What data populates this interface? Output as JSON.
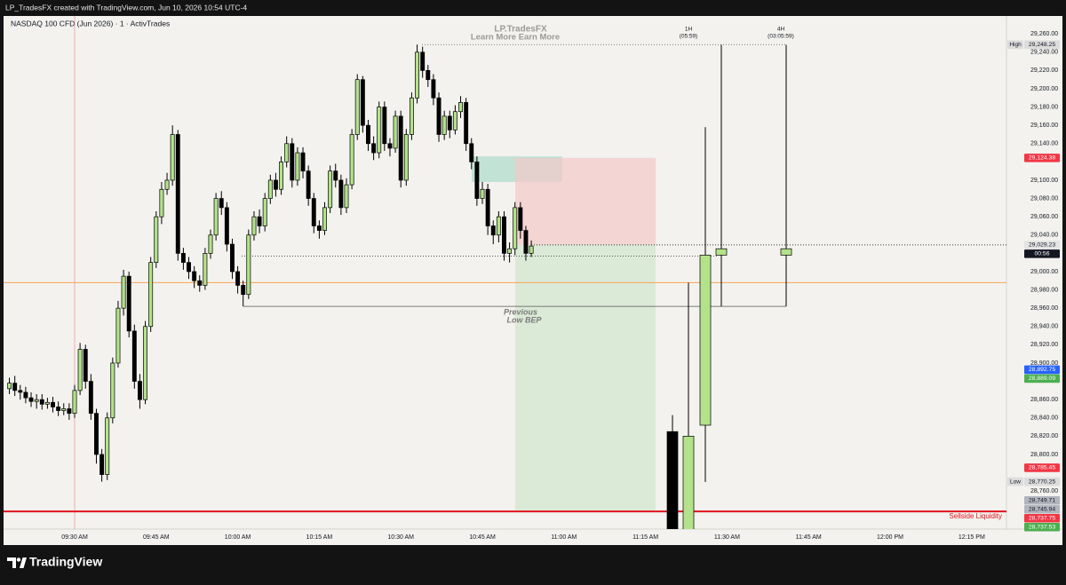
{
  "header": "LP_TradesFX created with TradingView.com, Jun 10, 2026 10:54 UTC-4",
  "footer": {
    "logo": "TradingView"
  },
  "chart_data": {
    "type": "candlestick",
    "title": "NASDAQ 100 CFD (Jun 2026) · 1 · ActivTrades",
    "watermark": [
      "LP.TradesFX",
      "Learn More Earn More"
    ],
    "categories": [
      "09:18",
      "09:19",
      "09:20",
      "09:21",
      "09:22",
      "09:23",
      "09:24",
      "09:25",
      "09:26",
      "09:27",
      "09:28",
      "09:29",
      "09:30",
      "09:31",
      "09:32",
      "09:33",
      "09:34",
      "09:35",
      "09:36",
      "09:37",
      "09:38",
      "09:39",
      "09:40",
      "09:41",
      "09:42",
      "09:43",
      "09:44",
      "09:45",
      "09:46",
      "09:47",
      "09:48",
      "09:49",
      "09:50",
      "09:51",
      "09:52",
      "09:53",
      "09:54",
      "09:55",
      "09:56",
      "09:57",
      "09:58",
      "09:59",
      "10:00",
      "10:01",
      "10:02",
      "10:03",
      "10:04",
      "10:05",
      "10:06",
      "10:07",
      "10:08",
      "10:09",
      "10:10",
      "10:11",
      "10:12",
      "10:13",
      "10:14",
      "10:15",
      "10:16",
      "10:17",
      "10:18",
      "10:19",
      "10:20",
      "10:21",
      "10:22",
      "10:23",
      "10:24",
      "10:25",
      "10:26",
      "10:27",
      "10:28",
      "10:29",
      "10:30",
      "10:31",
      "10:32",
      "10:33",
      "10:34",
      "10:35",
      "10:36",
      "10:37",
      "10:38",
      "10:39",
      "10:40",
      "10:41",
      "10:42",
      "10:43",
      "10:44",
      "10:45",
      "10:46",
      "10:47",
      "10:48",
      "10:49",
      "10:50",
      "10:51",
      "10:52",
      "10:53",
      "10:54"
    ],
    "open": [
      28872,
      28878,
      28870,
      28868,
      28862,
      28858,
      28860,
      28855,
      28857,
      28852,
      28848,
      28850,
      28845,
      28870,
      28915,
      28880,
      28845,
      28800,
      28778,
      28840,
      28900,
      28960,
      28995,
      28935,
      28880,
      28860,
      28940,
      29010,
      29060,
      29090,
      29100,
      29150,
      29020,
      29010,
      29000,
      28990,
      28985,
      29020,
      29040,
      29080,
      29070,
      29030,
      29000,
      28985,
      28975,
      29040,
      29060,
      29050,
      29080,
      29100,
      29090,
      29120,
      29140,
      29100,
      29130,
      29110,
      29080,
      29050,
      29045,
      29070,
      29110,
      29100,
      29070,
      29095,
      29150,
      29210,
      29160,
      29140,
      29130,
      29180,
      29140,
      29135,
      29170,
      29100,
      29150,
      29190,
      29240,
      29220,
      29210,
      29190,
      29150,
      29170,
      29155,
      29175,
      29185,
      29140,
      29120,
      29080,
      29090,
      29050,
      29040,
      29060,
      29020,
      29025,
      29070,
      29045,
      29020
    ],
    "high": [
      28884,
      28886,
      28876,
      28874,
      28868,
      28866,
      28866,
      28862,
      28863,
      28858,
      28856,
      28856,
      28876,
      28922,
      28920,
      28888,
      28850,
      28806,
      28846,
      28906,
      28968,
      29002,
      29000,
      28942,
      28888,
      28946,
      29016,
      29066,
      29098,
      29108,
      29160,
      29155,
      29026,
      29016,
      29006,
      28996,
      29026,
      29046,
      29086,
      29088,
      29076,
      29036,
      29006,
      28990,
      29046,
      29066,
      29068,
      29086,
      29106,
      29108,
      29126,
      29148,
      29146,
      29136,
      29136,
      29116,
      29086,
      29056,
      29076,
      29116,
      29118,
      29106,
      29102,
      29156,
      29216,
      29214,
      29166,
      29148,
      29186,
      29186,
      29146,
      29176,
      29176,
      29156,
      29196,
      29248.25,
      29246,
      29226,
      29216,
      29196,
      29176,
      29176,
      29182,
      29192,
      29190,
      29146,
      29126,
      29098,
      29096,
      29056,
      29066,
      29066,
      29032,
      29076,
      29076,
      29050,
      29034
    ],
    "low": [
      28866,
      28864,
      28860,
      28856,
      28852,
      28850,
      28849,
      28850,
      28846,
      28842,
      28843,
      28838,
      28840,
      28865,
      28872,
      28838,
      28790,
      28770.25,
      28772,
      28834,
      28895,
      28952,
      28928,
      28872,
      28850,
      28855,
      28934,
      29004,
      29052,
      29084,
      29094,
      29012,
      29002,
      28992,
      28982,
      28978,
      28980,
      29014,
      29034,
      29062,
      29022,
      28992,
      28976,
      28962,
      28970,
      29034,
      29042,
      29044,
      29074,
      29082,
      29084,
      29114,
      29092,
      29094,
      29102,
      29072,
      29042,
      29036,
      29040,
      29064,
      29092,
      29062,
      29064,
      29090,
      29144,
      29152,
      29132,
      29122,
      29124,
      29132,
      29126,
      29130,
      29092,
      29094,
      29144,
      29184,
      29212,
      29202,
      29182,
      29142,
      29144,
      29146,
      29150,
      29168,
      29132,
      29112,
      29072,
      29074,
      29040,
      29030,
      29032,
      29012,
      29010,
      29018,
      29036,
      29012,
      29016
    ],
    "close": [
      28878,
      28870,
      28868,
      28862,
      28858,
      28860,
      28855,
      28857,
      28852,
      28848,
      28850,
      28845,
      28870,
      28915,
      28880,
      28845,
      28800,
      28778,
      28840,
      28900,
      28960,
      28995,
      28935,
      28880,
      28860,
      28940,
      29010,
      29060,
      29090,
      29100,
      29150,
      29020,
      29010,
      29000,
      28990,
      28985,
      29020,
      29040,
      29080,
      29070,
      29030,
      29000,
      28985,
      28975,
      29040,
      29060,
      29050,
      29080,
      29100,
      29090,
      29120,
      29140,
      29100,
      29130,
      29110,
      29080,
      29050,
      29045,
      29070,
      29110,
      29100,
      29070,
      29095,
      29150,
      29210,
      29160,
      29140,
      29130,
      29180,
      29140,
      29135,
      29170,
      29100,
      29150,
      29190,
      29240,
      29220,
      29210,
      29190,
      29150,
      29170,
      29155,
      29175,
      29185,
      29140,
      29120,
      29080,
      29090,
      29050,
      29040,
      29060,
      29020,
      29025,
      29070,
      29045,
      29020,
      29028
    ],
    "up_color": "#b3e28a",
    "down_color": "#000000",
    "ylim": [
      28718.4,
      29279.6
    ],
    "yticks": [
      {
        "value": 28760,
        "label": "28,760.00"
      },
      {
        "value": 28800,
        "label": "28,800.00"
      },
      {
        "value": 28820,
        "label": "28,820.00"
      },
      {
        "value": 28840,
        "label": "28,840.00"
      },
      {
        "value": 28860,
        "label": "28,860.00"
      },
      {
        "value": 28900,
        "label": "28,900.00"
      },
      {
        "value": 28920,
        "label": "28,920.00"
      },
      {
        "value": 28940,
        "label": "28,940.00"
      },
      {
        "value": 28960,
        "label": "28,960.00"
      },
      {
        "value": 28980,
        "label": "28,980.00"
      },
      {
        "value": 29000,
        "label": "29,000.00"
      },
      {
        "value": 29040,
        "label": "29,040.00"
      },
      {
        "value": 29060,
        "label": "29,060.00"
      },
      {
        "value": 29080,
        "label": "29,080.00"
      },
      {
        "value": 29100,
        "label": "29,100.00"
      },
      {
        "value": 29140,
        "label": "29,140.00"
      },
      {
        "value": 29160,
        "label": "29,160.00"
      },
      {
        "value": 29180,
        "label": "29,180.00"
      },
      {
        "value": 29200,
        "label": "29,200.00"
      },
      {
        "value": 29220,
        "label": "29,220.00"
      },
      {
        "value": 29240,
        "label": "29,240.00"
      },
      {
        "value": 29260,
        "label": "29,260.00"
      }
    ],
    "time_labels": [
      "09:30 AM",
      "09:45 AM",
      "10:00 AM",
      "10:15 AM",
      "10:30 AM",
      "10:45 AM",
      "11:00 AM",
      "11:15 AM",
      "11:30 AM",
      "11:45 AM",
      "12:00 PM",
      "12:15 PM"
    ],
    "htf": {
      "labels": [
        [
          "1H",
          "(05:59)"
        ],
        [
          "4H",
          "(03:05:59)"
        ]
      ],
      "open": [
        28825,
        28700,
        28832,
        29018,
        29018
      ],
      "high": [
        28843,
        28988,
        29158,
        29248,
        29248
      ],
      "low": [
        28680,
        28690,
        28770,
        28962,
        28962
      ],
      "close": [
        28700,
        28820,
        29018,
        29025,
        29025
      ]
    },
    "price_markers": [
      {
        "value": 29248.25,
        "label": "29,248.25",
        "tag": "High",
        "color": "#dcdcdc",
        "text_color": "#131722"
      },
      {
        "value": 29124.38,
        "label": "29,124.38",
        "color": "#f23645",
        "text_color": "#ffffff"
      },
      {
        "value": 29029.23,
        "label": "29,029.23",
        "color": "#e3e3e3",
        "text_color": "#131722"
      },
      {
        "value": 28892.75,
        "label": "28,892.75",
        "color": "#2962ff",
        "text_color": "#ffffff"
      },
      {
        "value": 28889.09,
        "label": "28,889.09",
        "color": "#4caf50",
        "text_color": "#ffffff"
      },
      {
        "value": 28785.45,
        "label": "28,785.45",
        "color": "#f23645",
        "text_color": "#ffffff"
      },
      {
        "value": 28770.25,
        "label": "28,770.25",
        "tag": "Low",
        "color": "#dcdcdc",
        "text_color": "#131722"
      },
      {
        "value": 28749.71,
        "label": "28,749.71",
        "color": "#b2b5be",
        "text_color": "#131722"
      },
      {
        "value": 28745.94,
        "label": "28,745.94",
        "color": "#b2b5be",
        "text_color": "#131722"
      },
      {
        "value": 28737.75,
        "label": "28,737.75",
        "color": "#f23645",
        "text_color": "#ffffff"
      },
      {
        "value": 28737.53,
        "label": "28,737.53",
        "color": "#4caf50",
        "text_color": "#ffffff"
      }
    ],
    "countdown": "00:56",
    "levels": {
      "high": 29248.25,
      "previous_low": 28962,
      "open_level": 29017,
      "orange": 28988,
      "sellside": 28737.75
    },
    "annotations": {
      "previous_low": [
        "Previous",
        "Low BEP"
      ],
      "sellside": "Sellside Liquidity"
    },
    "position": {
      "stop": 29124.38,
      "entry": 29029.23,
      "target": 28737.53
    },
    "fvg": {
      "top": 29126,
      "bottom": 29098
    }
  }
}
